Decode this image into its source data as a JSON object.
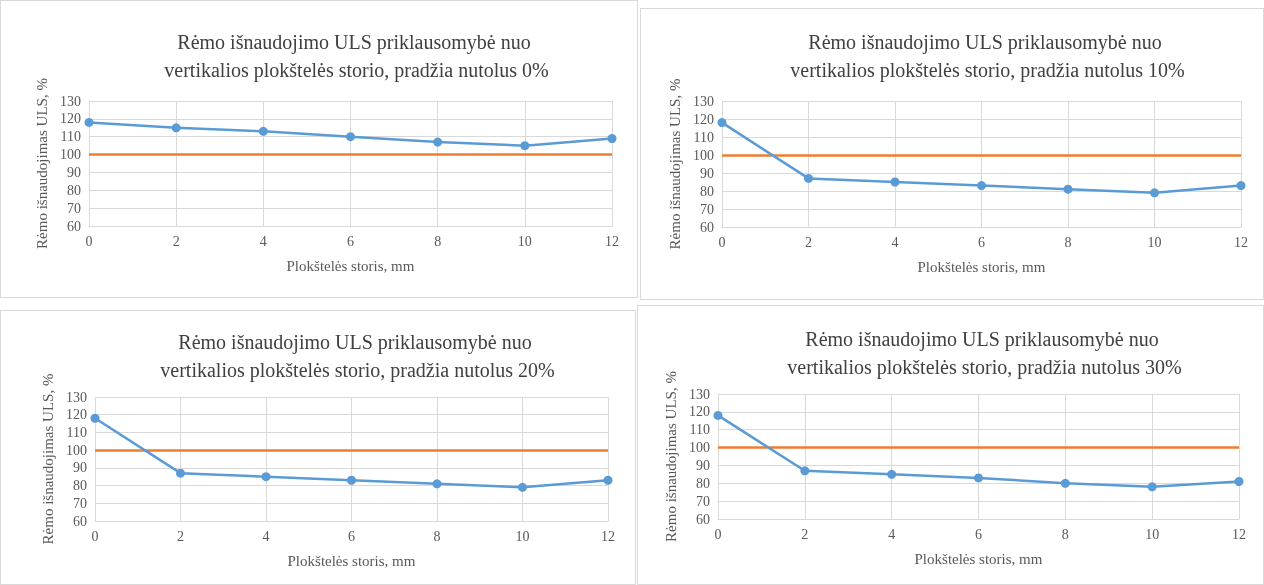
{
  "chart_data": [
    {
      "type": "line",
      "title": "Rėmo išnaudojimo ULS priklausomybė nuo vertikalios plokštelės storio, pradžia nutolus 0%",
      "xlabel": "Plokštelės storis, mm",
      "ylabel": "Rėmo išnaudojimas ULS, %",
      "x": [
        0,
        2,
        4,
        6,
        8,
        10,
        12
      ],
      "series": [
        {
          "color": "#5b9bd5",
          "values": [
            118,
            115,
            113,
            110,
            107,
            105,
            109
          ]
        }
      ],
      "xlim": [
        0,
        12
      ],
      "xticks": [
        0,
        2,
        4,
        6,
        8,
        10,
        12
      ],
      "ylim": [
        60,
        130
      ],
      "yticks": [
        60,
        70,
        80,
        90,
        100,
        110,
        120,
        130
      ],
      "ref_lines": [
        {
          "axis": "y",
          "value": 100,
          "label": null,
          "color": "#ed7d31"
        }
      ],
      "grid": true,
      "marker": "circle",
      "line_style": "solid"
    },
    {
      "type": "line",
      "title": "Rėmo išnaudojimo ULS priklausomybė nuo vertikalios plokštelės storio, pradžia nutolus 10%",
      "xlabel": "Plokštelės storis, mm",
      "ylabel": "Rėmo išnaudojimas ULS, %",
      "x": [
        0,
        2,
        4,
        6,
        8,
        10,
        12
      ],
      "series": [
        {
          "color": "#5b9bd5",
          "values": [
            118,
            87,
            85,
            83,
            81,
            79,
            83
          ]
        }
      ],
      "xlim": [
        0,
        12
      ],
      "xticks": [
        0,
        2,
        4,
        6,
        8,
        10,
        12
      ],
      "ylim": [
        60,
        130
      ],
      "yticks": [
        60,
        70,
        80,
        90,
        100,
        110,
        120,
        130
      ],
      "ref_lines": [
        {
          "axis": "y",
          "value": 100,
          "label": null,
          "color": "#ed7d31"
        }
      ],
      "grid": true,
      "marker": "circle",
      "line_style": "solid"
    },
    {
      "type": "line",
      "title": "Rėmo išnaudojimo ULS priklausomybė nuo vertikalios plokštelės storio, pradžia nutolus 20%",
      "xlabel": "Plokštelės storis, mm",
      "ylabel": "Rėmo išnaudojimas ULS, %",
      "x": [
        0,
        2,
        4,
        6,
        8,
        10,
        12
      ],
      "series": [
        {
          "color": "#5b9bd5",
          "values": [
            118,
            87,
            85,
            83,
            81,
            79,
            83
          ]
        }
      ],
      "xlim": [
        0,
        12
      ],
      "xticks": [
        0,
        2,
        4,
        6,
        8,
        10,
        12
      ],
      "ylim": [
        60,
        130
      ],
      "yticks": [
        60,
        70,
        80,
        90,
        100,
        110,
        120,
        130
      ],
      "ref_lines": [
        {
          "axis": "y",
          "value": 100,
          "label": null,
          "color": "#ed7d31"
        }
      ],
      "grid": true,
      "marker": "circle",
      "line_style": "solid"
    },
    {
      "type": "line",
      "title": "Rėmo išnaudojimo ULS priklausomybė nuo vertikalios plokštelės storio, pradžia nutolus 30%",
      "xlabel": "Plokštelės storis, mm",
      "ylabel": "Rėmo išnaudojimas ULS, %",
      "x": [
        0,
        2,
        4,
        6,
        8,
        10,
        12
      ],
      "series": [
        {
          "color": "#5b9bd5",
          "values": [
            118,
            87,
            85,
            83,
            80,
            78,
            81
          ]
        }
      ],
      "xlim": [
        0,
        12
      ],
      "xticks": [
        0,
        2,
        4,
        6,
        8,
        10,
        12
      ],
      "ylim": [
        60,
        130
      ],
      "yticks": [
        60,
        70,
        80,
        90,
        100,
        110,
        120,
        130
      ],
      "ref_lines": [
        {
          "axis": "y",
          "value": 100,
          "label": null,
          "color": "#ed7d31"
        }
      ],
      "grid": true,
      "marker": "circle",
      "line_style": "solid"
    }
  ]
}
